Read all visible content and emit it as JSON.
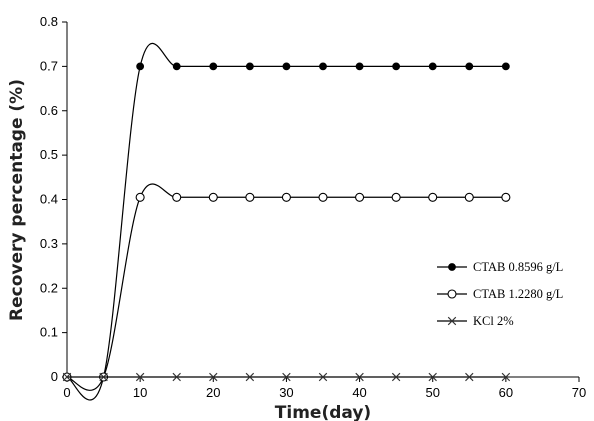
{
  "chart_data": {
    "type": "line",
    "xlabel": "Time(day)",
    "ylabel": "Recovery percentage (%)",
    "xlim": [
      0,
      70
    ],
    "ylim": [
      0,
      0.8
    ],
    "xticks": [
      "0",
      "10",
      "20",
      "30",
      "40",
      "50",
      "60",
      "70"
    ],
    "yticks": [
      "0",
      "0.1",
      "0.2",
      "0.3",
      "0.4",
      "0.5",
      "0.6",
      "0.7",
      "0.8"
    ],
    "grid": false,
    "legend_position": "right",
    "x": [
      0,
      5,
      10,
      15,
      20,
      25,
      30,
      35,
      40,
      45,
      50,
      55,
      60
    ],
    "series": [
      {
        "name": "CTAB 0.8596 g/L",
        "marker": "filled-circle",
        "color": "#000000",
        "values": [
          0,
          0,
          0.7,
          0.7,
          0.7,
          0.7,
          0.7,
          0.7,
          0.7,
          0.7,
          0.7,
          0.7,
          0.7
        ]
      },
      {
        "name": "CTAB 1.2280 g/L",
        "marker": "open-circle",
        "color": "#000000",
        "values": [
          0,
          0,
          0.405,
          0.405,
          0.405,
          0.405,
          0.405,
          0.405,
          0.405,
          0.405,
          0.405,
          0.405,
          0.405
        ]
      },
      {
        "name": "KCl 2%",
        "marker": "cross",
        "color": "#000000",
        "values": [
          0,
          0,
          0,
          0,
          0,
          0,
          0,
          0,
          0,
          0,
          0,
          0,
          0
        ]
      }
    ]
  }
}
